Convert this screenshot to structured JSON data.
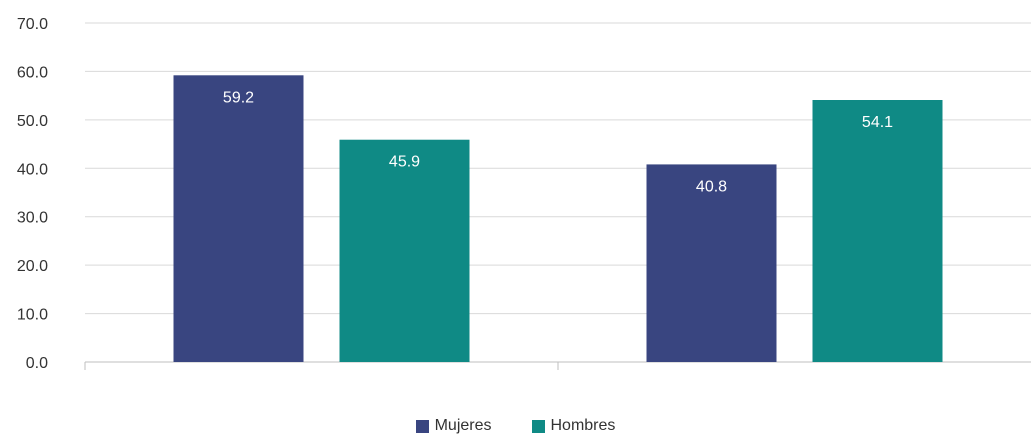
{
  "chart_data": {
    "type": "bar",
    "categories": [
      "",
      ""
    ],
    "series": [
      {
        "name": "Mujeres",
        "values": [
          59.2,
          40.8
        ],
        "color": "#394580"
      },
      {
        "name": "Hombres",
        "values": [
          45.9,
          54.1
        ],
        "color": "#0f8a85"
      }
    ],
    "value_labels": [
      [
        "59.2",
        "40.8"
      ],
      [
        "45.9",
        "54.1"
      ]
    ],
    "yticks": [
      "0.0",
      "10.0",
      "20.0",
      "30.0",
      "40.0",
      "50.0",
      "60.0",
      "70.0"
    ],
    "ylim": [
      0,
      70
    ],
    "grid": true,
    "legend_position": "bottom",
    "title": "",
    "xlabel": "",
    "ylabel": ""
  }
}
